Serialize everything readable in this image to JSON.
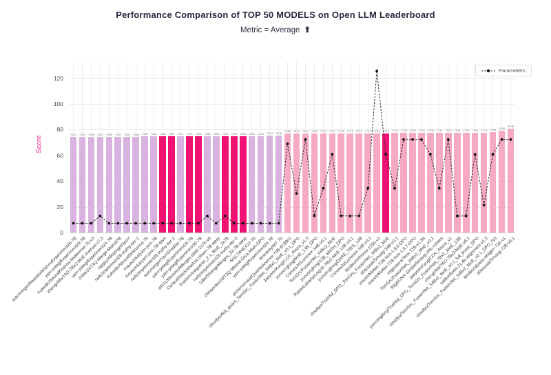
{
  "title": "Performance Comparison of TOP 50 MODELS on Open LLM Leaderboard",
  "subtitle": "Metric = Average",
  "subtitle_arrow": "⬆",
  "legend": {
    "parameters_label": "Parameters"
  },
  "y_axis": {
    "label": "Score",
    "ticks": [
      "0",
      "20",
      "40",
      "60",
      "80",
      "100",
      "120"
    ]
  },
  "colors": {
    "purple_bar": "#d9b3df",
    "pink_bar": "#f5a9c5",
    "magenta_bar": "#ef1273",
    "line": "#1f1f1f",
    "grid": "#e8e8e8",
    "title_text": "#262a3e",
    "score_label": "#f0218c"
  },
  "chart_data": {
    "type": "bar",
    "title": "Performance Comparison of TOP 50 MODELS on Open LLM Leaderboard",
    "subtitle": "Metric = Average",
    "xlabel": "",
    "ylabel": "Score",
    "ylim": [
      0,
      132
    ],
    "grid": true,
    "legend_position": "top-right",
    "series": [
      {
        "name": "Average",
        "type": "bar"
      },
      {
        "name": "Parameters",
        "type": "line",
        "style": "dotted-with-markers"
      }
    ],
    "models": [
      {
        "name": "automerger/NeuralsirkrishnaExperiment26-7B",
        "average": 74.41,
        "parameters_b": 7.24,
        "group": "purple"
      },
      {
        "name": "yam-peleg/Experiment29-7B",
        "average": 74.43,
        "parameters_b": 7.24,
        "group": "purple"
      },
      {
        "name": "Kukedlc/NeuralKrishna-Multiverse-7b-v3",
        "average": 74.45,
        "parameters_b": 7.24,
        "group": "purple"
      },
      {
        "name": "zhengr/MixTAO-7Bx2-MoE-Instruct-v7.0",
        "average": 74.47,
        "parameters_b": 12.88,
        "group": "purple"
      },
      {
        "name": "yam-peleg/Experiment24-7B",
        "average": 74.49,
        "parameters_b": 7.24,
        "group": "purple"
      },
      {
        "name": "chlee10/T3Q-Merge-Mistral7B",
        "average": 74.52,
        "parameters_b": 7.24,
        "group": "purple"
      },
      {
        "name": "nlpguy/AlloyIngotNeoY",
        "average": 74.54,
        "parameters_b": 7.24,
        "group": "purple"
      },
      {
        "name": "rwitz/experiment26-truthy-iter-2",
        "average": 74.56,
        "parameters_b": 7.24,
        "group": "purple"
      },
      {
        "name": "Kukedlc/NeuralSirKrishna-7b",
        "average": 74.59,
        "parameters_b": 7.24,
        "group": "purple"
      },
      {
        "name": "mayacinka/yam-jom-7B",
        "average": 74.61,
        "parameters_b": 7.24,
        "group": "purple"
      },
      {
        "name": "mayacinka/yam-jom-7B-dare",
        "average": 74.64,
        "parameters_b": 7.24,
        "group": "magenta"
      },
      {
        "name": "rwitz/experiment26-truthy-iter-1",
        "average": 74.67,
        "parameters_b": 7.24,
        "group": "magenta"
      },
      {
        "name": "automerger/YamShadow-7B",
        "average": 74.71,
        "parameters_b": 7.24,
        "group": "purple"
      },
      {
        "name": "yam-peleg/Experiment28-7B",
        "average": 74.75,
        "parameters_b": 7.24,
        "group": "magenta"
      },
      {
        "name": "yam-peleg/Experiment30-7B",
        "average": 74.8,
        "parameters_b": 7.24,
        "group": "magenta"
      },
      {
        "name": "jsfs11/MixtureofMerges-MoE-2x7b-v6",
        "average": 74.85,
        "parameters_b": 12.88,
        "group": "purple"
      },
      {
        "name": "CorticalStack/shadow-clown-7B-slerp",
        "average": 74.89,
        "parameters_b": 7.24,
        "group": "purple"
      },
      {
        "name": "Eurdem/megatron_2.1_MoE_2x7B",
        "average": 74.92,
        "parameters_b": 12.88,
        "group": "magenta"
      },
      {
        "name": "rwitz/experiment26-truthy-iter-0",
        "average": 74.95,
        "parameters_b": 7.24,
        "group": "magenta"
      },
      {
        "name": "Gille/StrangeMerges_32-7B-slerp",
        "average": 74.98,
        "parameters_b": 7.24,
        "group": "magenta"
      },
      {
        "name": "MSL7/INEX12-7b",
        "average": 75.02,
        "parameters_b": 7.24,
        "group": "purple"
      },
      {
        "name": "chihoonlee10/T3Q-Mistral-Orca-Math-DPO",
        "average": 75.1,
        "parameters_b": 7.24,
        "group": "purple"
      },
      {
        "name": "yam-peleg/Experiment26-7B",
        "average": 75.19,
        "parameters_b": 7.24,
        "group": "purple"
      },
      {
        "name": "liminerity/M7-7b",
        "average": 75.28,
        "parameters_b": 7.24,
        "group": "purple"
      },
      {
        "name": "alchemonaut/QuartetAnemoi-70B-t0.0001",
        "average": 76.86,
        "parameters_b": 68.98,
        "group": "pink"
      },
      {
        "name": "cloudyu/4bit_quant_TomGrc_FusionNet_34Bx2_MoE_v0.1_DPO",
        "average": 76.9,
        "parameters_b": 30.4,
        "group": "pink"
      },
      {
        "name": "JaeyeonKang/CCK_Asura_v1.0",
        "average": 76.94,
        "parameters_b": 72.29,
        "group": "pink"
      },
      {
        "name": "yunconglong/MoE_13B_DPO",
        "average": 76.98,
        "parameters_b": 13.02,
        "group": "pink"
      },
      {
        "name": "ConvexAI/Luminex-34B-v0.1",
        "average": 77.03,
        "parameters_b": 34.39,
        "group": "pink"
      },
      {
        "name": "TomGrc/FusionNet_34Bx2_MoE",
        "average": 77.07,
        "parameters_b": 60.81,
        "group": "pink"
      },
      {
        "name": "yunconglong/13B_MATH_DPO",
        "average": 77.08,
        "parameters_b": 13.02,
        "group": "pink"
      },
      {
        "name": "RubielLabarta/LogoS-7Bx2-MoE-13B-v0.1",
        "average": 77.1,
        "parameters_b": 12.88,
        "group": "pink"
      },
      {
        "name": "yunconglong/DARE_TIES_13B",
        "average": 77.12,
        "parameters_b": 13.02,
        "group": "pink"
      },
      {
        "name": "ConvexAI/Luminex-34B-v0.2",
        "average": 77.14,
        "parameters_b": 34.39,
        "group": "pink"
      },
      {
        "name": "ibivibiv/orthorus-125b-v2",
        "average": 77.16,
        "parameters_b": 125.5,
        "group": "pink"
      },
      {
        "name": "cloudyu/Truthful_DPO_TomGrc_FusionNet_34Bx2_MoE",
        "average": 77.19,
        "parameters_b": 60.81,
        "group": "magenta"
      },
      {
        "name": "abacusai/Smaug-34B-v0.1",
        "average": 77.29,
        "parameters_b": 34.39,
        "group": "pink"
      },
      {
        "name": "moreh/MoMo-72B-lora-1.8.6-DPO",
        "average": 77.29,
        "parameters_b": 72.29,
        "group": "pink"
      },
      {
        "name": "moreh/MoMo-72B-lora-1.8.7-DPO",
        "average": 77.3,
        "parameters_b": 72.29,
        "group": "pink"
      },
      {
        "name": "migtissera/Tess-72B-v1.5b",
        "average": 77.32,
        "parameters_b": 72.29,
        "group": "pink"
      },
      {
        "name": "TomGrc/FusionNet_34Bx2_MoE_v0.1",
        "average": 77.38,
        "parameters_b": 60.81,
        "group": "pink"
      },
      {
        "name": "fblgit/UNA-SimpleSmaug-34b-v1beta",
        "average": 77.41,
        "parameters_b": 34.39,
        "group": "pink"
      },
      {
        "name": "JaeyeonKang/CCK_Asura_v1",
        "average": 77.43,
        "parameters_b": 72.29,
        "group": "pink"
      },
      {
        "name": "yunconglong/Truthful_DPO_TomGrc_FusionNet_7Bx2_MoE_13B",
        "average": 77.44,
        "parameters_b": 12.88,
        "group": "pink"
      },
      {
        "name": "zhengr/MixTAO-7Bx2-MoE-v8.1",
        "average": 77.5,
        "parameters_b": 12.88,
        "group": "pink"
      },
      {
        "name": "cloudyu/TomGrc_FusionNet_34Bx2_MoE_v0.1_full_linear_DPO",
        "average": 77.52,
        "parameters_b": 60.81,
        "group": "pink"
      },
      {
        "name": "saltlux/luxia-21.4b-alignment-v1.0",
        "average": 77.74,
        "parameters_b": 21.4,
        "group": "pink"
      },
      {
        "name": "cloudyu/TomGrc_FusionNet_34Bx2_MoE_v0.1_DPO_f16",
        "average": 77.91,
        "parameters_b": 60.81,
        "group": "pink"
      },
      {
        "name": "ibivibiv/alpaca-dragon-72b-v1",
        "average": 79.3,
        "parameters_b": 72.29,
        "group": "pink"
      },
      {
        "name": "abacusai/Smaug-72B-v0.1",
        "average": 80.48,
        "parameters_b": 72.29,
        "group": "pink"
      }
    ]
  }
}
